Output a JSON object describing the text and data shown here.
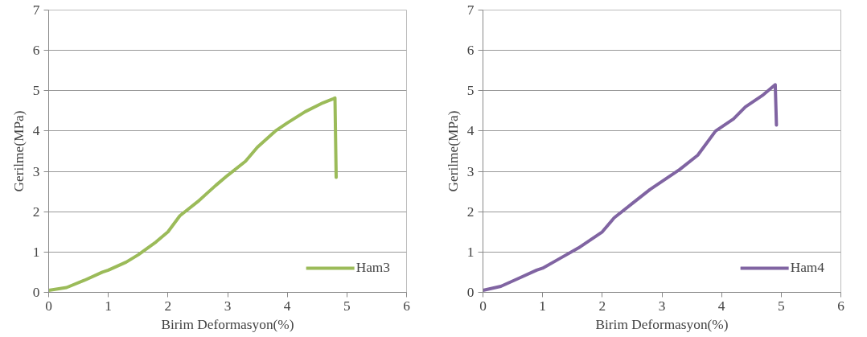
{
  "chart_data": [
    {
      "type": "line",
      "xlabel": "Birim Deformasyon(%)",
      "ylabel": "Gerilme(MPa)",
      "xlim": [
        0,
        6
      ],
      "ylim": [
        0,
        7
      ],
      "xticks": [
        0,
        1,
        2,
        3,
        4,
        5,
        6
      ],
      "yticks": [
        0,
        1,
        2,
        3,
        4,
        5,
        6,
        7
      ],
      "grid": "y",
      "legend": "bottom right",
      "series": [
        {
          "name": "Ham3",
          "color": "#9bbb59",
          "x": [
            0,
            0.3,
            0.6,
            0.9,
            1.0,
            1.3,
            1.5,
            1.8,
            2.0,
            2.2,
            2.5,
            2.8,
            3.0,
            3.3,
            3.5,
            3.8,
            4.0,
            4.3,
            4.6,
            4.77,
            4.8,
            4.82
          ],
          "values": [
            0.05,
            0.12,
            0.3,
            0.5,
            0.55,
            0.75,
            0.93,
            1.25,
            1.5,
            1.9,
            2.25,
            2.65,
            2.9,
            3.25,
            3.6,
            4.0,
            4.2,
            4.48,
            4.7,
            4.8,
            4.82,
            2.85
          ]
        }
      ]
    },
    {
      "type": "line",
      "xlabel": "Birim Deformasyon(%)",
      "ylabel": "Gerilme(MPa)",
      "xlim": [
        0,
        6
      ],
      "ylim": [
        0,
        7
      ],
      "xticks": [
        0,
        1,
        2,
        3,
        4,
        5,
        6
      ],
      "yticks": [
        0,
        1,
        2,
        3,
        4,
        5,
        6,
        7
      ],
      "grid": "y",
      "legend": "bottom right",
      "series": [
        {
          "name": "Ham4",
          "color": "#8064a2",
          "x": [
            0,
            0.3,
            0.6,
            0.9,
            1.0,
            1.3,
            1.6,
            2.0,
            2.2,
            2.5,
            2.8,
            3.0,
            3.3,
            3.6,
            3.7,
            3.9,
            4.2,
            4.4,
            4.7,
            4.9,
            4.92
          ],
          "values": [
            0.05,
            0.15,
            0.35,
            0.55,
            0.6,
            0.85,
            1.1,
            1.5,
            1.85,
            2.2,
            2.55,
            2.75,
            3.05,
            3.4,
            3.6,
            4.0,
            4.3,
            4.6,
            4.9,
            5.15,
            4.15
          ]
        }
      ]
    }
  ]
}
